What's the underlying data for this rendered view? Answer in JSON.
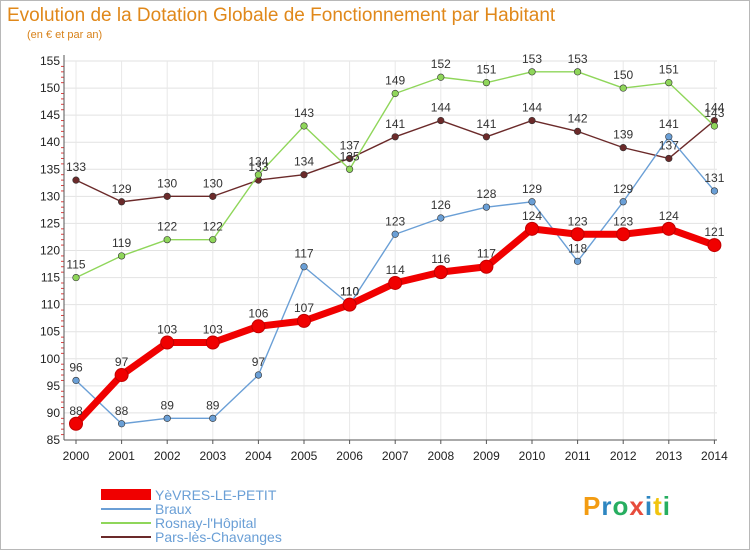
{
  "title": "Evolution de la Dotation Globale de Fonctionnement par Habitant",
  "subtitle": "(en € et par an)",
  "logo": {
    "text": "Proxiti",
    "letters": [
      {
        "ch": "P",
        "color": "#f39c12"
      },
      {
        "ch": "r",
        "color": "#2e86c1"
      },
      {
        "ch": "o",
        "color": "#27ae60"
      },
      {
        "ch": "x",
        "color": "#e74c3c"
      },
      {
        "ch": "i",
        "color": "#2e86c1"
      },
      {
        "ch": "t",
        "color": "#f1c40f"
      },
      {
        "ch": "i",
        "color": "#27ae60"
      }
    ]
  },
  "chart_data": {
    "type": "line",
    "title": "Evolution de la Dotation Globale de Fonctionnement par Habitant",
    "subtitle": "(en € et par an)",
    "xlabel": "",
    "ylabel": "",
    "ylim": [
      85,
      155
    ],
    "yticks": [
      85,
      90,
      95,
      100,
      105,
      110,
      115,
      120,
      125,
      130,
      135,
      140,
      145,
      150,
      155
    ],
    "grid": true,
    "legend_position": "bottom-left",
    "categories": [
      "2000",
      "2001",
      "2002",
      "2003",
      "2004",
      "2005",
      "2006",
      "2007",
      "2008",
      "2009",
      "2010",
      "2011",
      "2012",
      "2013",
      "2014"
    ],
    "series": [
      {
        "name": "Pars-lès-Chavanges",
        "color": "#6b2a2a",
        "emphasis": false,
        "values": [
          133,
          129,
          130,
          130,
          133,
          134,
          137,
          141,
          144,
          141,
          144,
          142,
          139,
          137,
          144
        ]
      },
      {
        "name": "Rosnay-l'Hôpital",
        "color": "#8fd65a",
        "emphasis": false,
        "values": [
          115,
          119,
          122,
          122,
          134,
          143,
          135,
          149,
          152,
          151,
          153,
          153,
          150,
          151,
          143
        ]
      },
      {
        "name": "Braux",
        "color": "#6a9fd6",
        "emphasis": false,
        "values": [
          96,
          88,
          89,
          89,
          97,
          117,
          110,
          123,
          126,
          128,
          129,
          118,
          129,
          141,
          131
        ]
      },
      {
        "name": "YèVRES-LE-PETIT",
        "color": "#f00000",
        "emphasis": true,
        "values": [
          88,
          97,
          103,
          103,
          106,
          107,
          110,
          114,
          116,
          117,
          124,
          123,
          123,
          124,
          121
        ]
      }
    ]
  },
  "legend": [
    {
      "label": "YèVRES-LE-PETIT",
      "color": "#f00000",
      "thick": true
    },
    {
      "label": "Braux",
      "color": "#6a9fd6",
      "thick": false
    },
    {
      "label": "Rosnay-l'Hôpital",
      "color": "#8fd65a",
      "thick": false
    },
    {
      "label": "Pars-lès-Chavanges",
      "color": "#6b2a2a",
      "thick": false
    }
  ]
}
